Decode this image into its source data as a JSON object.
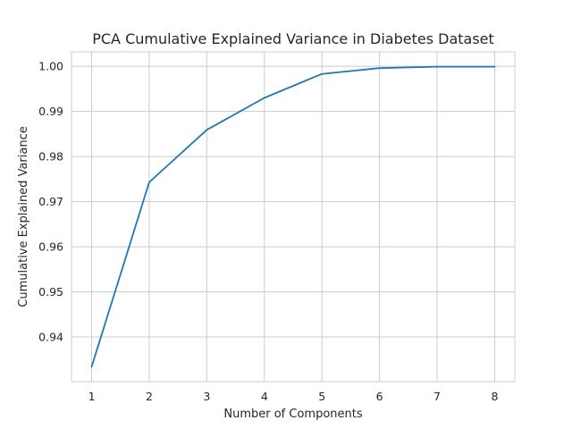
{
  "chart_data": {
    "type": "line",
    "title": "PCA Cumulative Explained Variance in Diabetes Dataset",
    "xlabel": "Number of Components",
    "ylabel": "Cumulative Explained Variance",
    "x": [
      1,
      2,
      3,
      4,
      5,
      6,
      7,
      8
    ],
    "xticks": [
      "1",
      "2",
      "3",
      "4",
      "5",
      "6",
      "7",
      "8"
    ],
    "series": [
      {
        "values": [
          0.9334,
          0.9743,
          0.9859,
          0.993,
          0.9983,
          0.9996,
          0.9999,
          0.9999
        ],
        "color": "#1f77b4"
      }
    ],
    "yticks": [
      "0.94",
      "0.95",
      "0.96",
      "0.97",
      "0.98",
      "0.99",
      "1.00"
    ],
    "xlim": [
      0.65,
      8.35
    ],
    "ylim": [
      0.9301,
      1.0032
    ],
    "grid": true
  }
}
